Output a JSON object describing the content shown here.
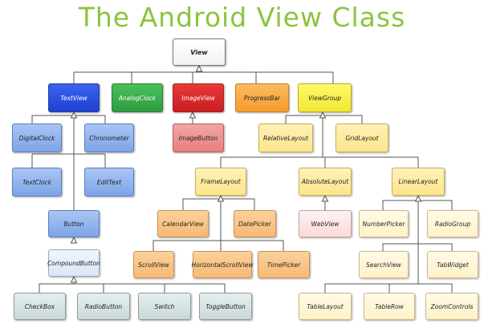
{
  "title": "The Android View Class",
  "colors": {
    "title": "#8bc43f",
    "edge": "#555555"
  },
  "nodes": {
    "view": "View",
    "text_view": "TextView",
    "analog_clock": "AnalogClock",
    "image_view": "ImageView",
    "progress_bar": "ProgressBar",
    "view_group": "ViewGroup",
    "digital_clock": "DigitalClock",
    "chronometer": "Chronometer",
    "image_button": "ImageButton",
    "relative_layout": "RelativeLayout",
    "grid_layout": "GridLayout",
    "text_clock": "TextClock",
    "edit_text": "EditText",
    "frame_layout": "FrameLayout",
    "absolute_layout": "AbsoluteLayout",
    "linear_layout": "LinearLayout",
    "button": "Button",
    "calendar_view": "CalendarView",
    "date_picker": "DatePicker",
    "web_view": "WebView",
    "number_picker": "NumberPicker",
    "radio_group": "RadioGroup",
    "compound_button": "CompoundButton",
    "scroll_view": "ScrollView",
    "horizontal_scroll_view": "HorizontalScrollView",
    "time_picker": "TimePicker",
    "search_view": "SearchView",
    "tab_widget": "TabWidget",
    "check_box": "CheckBox",
    "radio_button": "RadioButton",
    "switch": "Switch",
    "toggle_button": "ToggleButton",
    "table_layout": "TableLayout",
    "table_row": "TableRow",
    "zoom_controls": "ZoomControls"
  }
}
